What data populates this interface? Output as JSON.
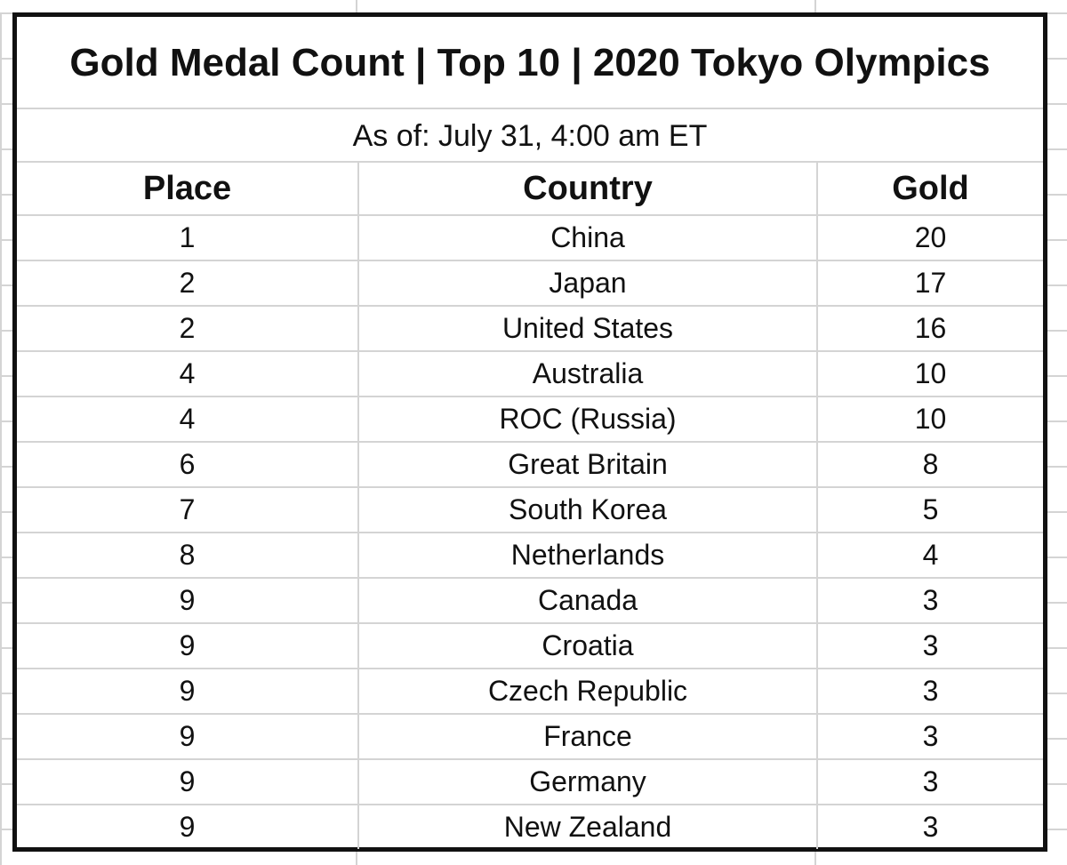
{
  "table": {
    "title": "Gold Medal Count | Top 10 | 2020 Tokyo Olympics",
    "subtitle": "As of: July 31, 4:00 am ET",
    "headers": {
      "place": "Place",
      "country": "Country",
      "gold": "Gold"
    },
    "rows": [
      {
        "place": "1",
        "country": "China",
        "gold": "20"
      },
      {
        "place": "2",
        "country": "Japan",
        "gold": "17"
      },
      {
        "place": "2",
        "country": "United States",
        "gold": "16"
      },
      {
        "place": "4",
        "country": "Australia",
        "gold": "10"
      },
      {
        "place": "4",
        "country": "ROC (Russia)",
        "gold": "10"
      },
      {
        "place": "6",
        "country": "Great Britain",
        "gold": "8"
      },
      {
        "place": "7",
        "country": "South Korea",
        "gold": "5"
      },
      {
        "place": "8",
        "country": "Netherlands",
        "gold": "4"
      },
      {
        "place": "9",
        "country": "Canada",
        "gold": "3"
      },
      {
        "place": "9",
        "country": "Croatia",
        "gold": "3"
      },
      {
        "place": "9",
        "country": "Czech Republic",
        "gold": "3"
      },
      {
        "place": "9",
        "country": "France",
        "gold": "3"
      },
      {
        "place": "9",
        "country": "Germany",
        "gold": "3"
      },
      {
        "place": "9",
        "country": "New Zealand",
        "gold": "3"
      }
    ]
  },
  "colors": {
    "border": "#111111",
    "gridline": "#d4d4d4",
    "text": "#111111",
    "background": "#ffffff"
  }
}
